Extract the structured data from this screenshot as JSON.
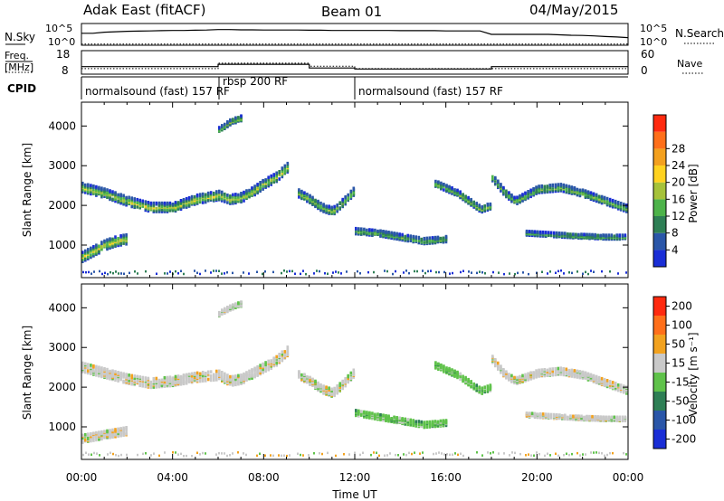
{
  "header": {
    "station": "Adak East (fitACF)",
    "beam": "Beam 01",
    "date": "04/May/2015"
  },
  "panels": {
    "nsky": {
      "left_label": "N.Sky",
      "right_label": "N.Search",
      "left_ticks": [
        "10^5",
        "10^0"
      ],
      "right_ticks": [
        "10^5",
        "10^0"
      ],
      "series_sky": [
        [
          0.0,
          0.55
        ],
        [
          0.5,
          0.55
        ],
        [
          1.0,
          0.6
        ],
        [
          1.5,
          0.62
        ],
        [
          2.0,
          0.64
        ],
        [
          2.5,
          0.65
        ],
        [
          3.0,
          0.66
        ],
        [
          3.5,
          0.67
        ],
        [
          4.0,
          0.68
        ],
        [
          4.5,
          0.68
        ],
        [
          5.0,
          0.69
        ],
        [
          5.5,
          0.7
        ],
        [
          6.0,
          0.72
        ],
        [
          6.5,
          0.72
        ],
        [
          7.0,
          0.71
        ],
        [
          7.5,
          0.71
        ],
        [
          8.0,
          0.7
        ],
        [
          8.5,
          0.7
        ],
        [
          9.0,
          0.7
        ],
        [
          9.5,
          0.7
        ],
        [
          10.0,
          0.69
        ],
        [
          10.5,
          0.69
        ],
        [
          11.0,
          0.68
        ],
        [
          11.5,
          0.68
        ],
        [
          12.0,
          0.68
        ],
        [
          12.5,
          0.68
        ],
        [
          13.0,
          0.68
        ],
        [
          13.5,
          0.68
        ],
        [
          14.0,
          0.67
        ],
        [
          14.5,
          0.67
        ],
        [
          15.0,
          0.67
        ],
        [
          15.5,
          0.67
        ],
        [
          16.0,
          0.66
        ],
        [
          16.5,
          0.66
        ],
        [
          17.0,
          0.66
        ],
        [
          17.5,
          0.66
        ],
        [
          18.0,
          0.5
        ],
        [
          18.5,
          0.5
        ],
        [
          19.0,
          0.5
        ],
        [
          19.5,
          0.5
        ],
        [
          20.0,
          0.5
        ],
        [
          20.5,
          0.5
        ],
        [
          21.0,
          0.48
        ],
        [
          21.5,
          0.46
        ],
        [
          22.0,
          0.45
        ],
        [
          22.5,
          0.43
        ],
        [
          23.0,
          0.4
        ],
        [
          23.5,
          0.38
        ],
        [
          24.0,
          0.35
        ]
      ],
      "series_search": [
        [
          0,
          0.05
        ],
        [
          24,
          0.05
        ]
      ]
    },
    "freq": {
      "left_label_1": "Freq.",
      "left_label_2": "[MHz]",
      "right_label": "Nave",
      "left_ticks": [
        18,
        8
      ],
      "right_ticks": [
        60,
        0
      ],
      "freq_series": [
        [
          0,
          11.2
        ],
        [
          6,
          11.2
        ],
        [
          6,
          12.2
        ],
        [
          10,
          12.2
        ],
        [
          10,
          10.6
        ],
        [
          12,
          10.6
        ],
        [
          12,
          10.2
        ],
        [
          18,
          10.2
        ],
        [
          18,
          11.2
        ],
        [
          24,
          11.2
        ]
      ],
      "nave_series": [
        [
          0,
          14
        ],
        [
          6,
          14
        ],
        [
          6,
          28
        ],
        [
          10,
          28
        ],
        [
          10,
          20
        ],
        [
          12,
          20
        ],
        [
          12,
          14
        ],
        [
          18,
          14
        ],
        [
          18,
          14
        ],
        [
          24,
          14
        ]
      ]
    },
    "cpid": {
      "label": "CPID",
      "segments": [
        {
          "start": 0,
          "end": 6,
          "text": "normalsound (fast) 157 RF"
        },
        {
          "start": 6,
          "end": 12,
          "text": "rbsp 200 RF"
        },
        {
          "start": 12,
          "end": 24,
          "text": "normalsound (fast) 157 RF"
        }
      ]
    }
  },
  "chart_data": [
    {
      "type": "heatmap",
      "name": "power",
      "ylabel": "Slant Range [km]",
      "yticks": [
        1000,
        2000,
        3000,
        4000
      ],
      "ylim": [
        180,
        4600
      ],
      "xlim": [
        0,
        24
      ],
      "colorbar": {
        "label": "Power [dB]",
        "ticks": [
          4,
          8,
          12,
          16,
          20,
          24,
          28
        ],
        "colors": [
          "#1a2ed6",
          "#2a56a8",
          "#2e7f55",
          "#4db34a",
          "#a6c23a",
          "#ffd21f",
          "#f3a01e",
          "#ff6f1a",
          "#ff2a0f"
        ]
      },
      "echo_bands": [
        {
          "range_curve": [
            [
              0.0,
              700
            ],
            [
              0.5,
              850
            ],
            [
              1.0,
              1000
            ],
            [
              1.5,
              1100
            ],
            [
              2.0,
              1150
            ]
          ],
          "width": 260,
          "level": 14
        },
        {
          "range_curve": [
            [
              0.0,
              2450
            ],
            [
              1.0,
              2300
            ],
            [
              2.0,
              2100
            ],
            [
              3.0,
              1950
            ],
            [
              4.0,
              1950
            ],
            [
              5.0,
              2150
            ],
            [
              6.0,
              2250
            ],
            [
              6.5,
              2150
            ],
            [
              7.0,
              2200
            ],
            [
              7.5,
              2350
            ],
            [
              8.0,
              2550
            ],
            [
              8.5,
              2700
            ],
            [
              9.0,
              2950
            ]
          ],
          "width": 240,
          "level": 12
        },
        {
          "range_curve": [
            [
              9.5,
              2300
            ],
            [
              10.0,
              2150
            ],
            [
              10.5,
              1950
            ],
            [
              11.0,
              1850
            ],
            [
              11.5,
              2100
            ],
            [
              12.0,
              2400
            ]
          ],
          "width": 200,
          "level": 10
        },
        {
          "range_curve": [
            [
              12.0,
              1350
            ],
            [
              13.0,
              1300
            ],
            [
              14.0,
              1200
            ],
            [
              15.0,
              1100
            ],
            [
              16.0,
              1150
            ]
          ],
          "width": 150,
          "level": 8
        },
        {
          "range_curve": [
            [
              15.5,
              2550
            ],
            [
              16.5,
              2300
            ],
            [
              17.0,
              2100
            ],
            [
              17.5,
              1900
            ],
            [
              18.0,
              2000
            ]
          ],
          "width": 160,
          "level": 10
        },
        {
          "range_curve": [
            [
              18.0,
              2700
            ],
            [
              18.5,
              2350
            ],
            [
              19.0,
              2100
            ],
            [
              19.5,
              2250
            ],
            [
              20.0,
              2400
            ],
            [
              21.0,
              2450
            ],
            [
              22.0,
              2300
            ],
            [
              23.0,
              2100
            ],
            [
              24.0,
              1900
            ]
          ],
          "width": 180,
          "level": 9
        },
        {
          "range_curve": [
            [
              19.5,
              1300
            ],
            [
              21.0,
              1250
            ],
            [
              22.0,
              1220
            ],
            [
              23.0,
              1200
            ],
            [
              24.0,
              1200
            ]
          ],
          "width": 110,
          "level": 7
        },
        {
          "range_curve": [
            [
              6.0,
              3900
            ],
            [
              6.5,
              4100
            ],
            [
              7.0,
              4200
            ]
          ],
          "width": 140,
          "level": 10
        }
      ]
    },
    {
      "type": "heatmap",
      "name": "velocity",
      "ylabel": "Slant Range [km]",
      "yticks": [
        1000,
        2000,
        3000,
        4000
      ],
      "ylim": [
        180,
        4600
      ],
      "xlim": [
        0,
        24
      ],
      "xticks": [
        "00:00",
        "04:00",
        "08:00",
        "12:00",
        "16:00",
        "20:00",
        "00:00"
      ],
      "xlabel": "Time UT",
      "colorbar": {
        "label": "Velocity [m s⁻¹]",
        "ticks": [
          "200",
          "100",
          "50",
          "15",
          "-15",
          "-50",
          "-100",
          "-200"
        ],
        "colors": [
          "#1a2ed6",
          "#2a56a8",
          "#2e7f55",
          "#5fc24a",
          "#c9c9c9",
          "#f2a21f",
          "#ff6f1a",
          "#ff2a0f"
        ]
      },
      "echo_bands": [
        {
          "range_curve": [
            [
              0.0,
              700
            ],
            [
              0.5,
              750
            ],
            [
              1.0,
              800
            ],
            [
              1.5,
              850
            ],
            [
              2.0,
              900
            ]
          ],
          "width": 200,
          "level": 4
        },
        {
          "range_curve": [
            [
              0.0,
              2500
            ],
            [
              1.0,
              2350
            ],
            [
              2.0,
              2200
            ],
            [
              3.0,
              2100
            ],
            [
              4.0,
              2150
            ],
            [
              5.0,
              2250
            ],
            [
              6.0,
              2300
            ],
            [
              6.5,
              2150
            ],
            [
              7.0,
              2200
            ],
            [
              7.5,
              2350
            ],
            [
              8.0,
              2500
            ],
            [
              8.5,
              2650
            ],
            [
              9.0,
              2900
            ]
          ],
          "width": 240,
          "level": 4
        },
        {
          "range_curve": [
            [
              9.5,
              2300
            ],
            [
              10.0,
              2150
            ],
            [
              10.5,
              1950
            ],
            [
              11.0,
              1850
            ],
            [
              11.5,
              2100
            ],
            [
              12.0,
              2400
            ]
          ],
          "width": 200,
          "level": 4
        },
        {
          "range_curve": [
            [
              12.0,
              1350
            ],
            [
              13.0,
              1250
            ],
            [
              14.0,
              1150
            ],
            [
              15.0,
              1050
            ],
            [
              16.0,
              1100
            ]
          ],
          "width": 140,
          "level": 3
        },
        {
          "range_curve": [
            [
              15.5,
              2550
            ],
            [
              16.5,
              2300
            ],
            [
              17.0,
              2100
            ],
            [
              17.5,
              1900
            ],
            [
              18.0,
              2000
            ]
          ],
          "width": 150,
          "level": 3
        },
        {
          "range_curve": [
            [
              18.0,
              2700
            ],
            [
              18.5,
              2350
            ],
            [
              19.0,
              2150
            ],
            [
              19.5,
              2250
            ],
            [
              20.0,
              2350
            ],
            [
              21.0,
              2400
            ],
            [
              22.0,
              2300
            ],
            [
              23.0,
              2100
            ],
            [
              24.0,
              1900
            ]
          ],
          "width": 170,
          "level": 4
        },
        {
          "range_curve": [
            [
              19.5,
              1300
            ],
            [
              21.0,
              1250
            ],
            [
              22.0,
              1220
            ],
            [
              23.0,
              1200
            ],
            [
              24.0,
              1200
            ]
          ],
          "width": 100,
          "level": 4
        },
        {
          "range_curve": [
            [
              6.0,
              3850
            ],
            [
              6.5,
              4000
            ],
            [
              7.0,
              4100
            ]
          ],
          "width": 120,
          "level": 4
        }
      ]
    }
  ]
}
